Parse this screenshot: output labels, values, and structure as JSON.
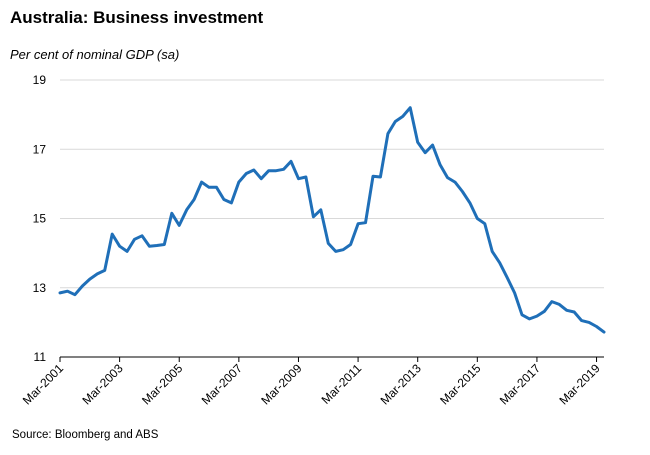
{
  "chart_data": {
    "type": "line",
    "title": "Australia: Business investment",
    "subtitle": "Per cent of nominal GDP (sa)",
    "source": "Source: Bloomberg and ABS",
    "ylim": [
      11,
      19
    ],
    "yticks": [
      11,
      13,
      15,
      17,
      19
    ],
    "xlabel": "",
    "ylabel": "",
    "grid": "horizontal",
    "legend": "none",
    "line_color": "#1f6fb8",
    "x_start_quarter_label": "Mar-2001",
    "xticks": [
      "Mar-2001",
      "Mar-2003",
      "Mar-2005",
      "Mar-2007",
      "Mar-2009",
      "Mar-2011",
      "Mar-2013",
      "Mar-2015",
      "Mar-2017",
      "Mar-2019"
    ],
    "series": [
      {
        "values": [
          12.85,
          12.9,
          12.8,
          13.05,
          13.25,
          13.4,
          13.5,
          14.55,
          14.2,
          14.05,
          14.4,
          14.5,
          14.2,
          14.22,
          14.25,
          15.15,
          14.8,
          15.25,
          15.55,
          16.05,
          15.9,
          15.9,
          15.55,
          15.45,
          16.05,
          16.3,
          16.4,
          16.15,
          16.38,
          16.38,
          16.42,
          16.65,
          16.15,
          16.2,
          15.05,
          15.25,
          14.28,
          14.05,
          14.1,
          14.25,
          14.85,
          14.88,
          16.22,
          16.2,
          17.45,
          17.8,
          17.95,
          18.2,
          17.2,
          16.9,
          17.12,
          16.55,
          16.18,
          16.05,
          15.78,
          15.45,
          15.0,
          14.85,
          14.05,
          13.72,
          13.3,
          12.85,
          12.22,
          12.1,
          12.18,
          12.32,
          12.6,
          12.52,
          12.35,
          12.3,
          12.05,
          12.0,
          11.88,
          11.72
        ]
      }
    ]
  }
}
